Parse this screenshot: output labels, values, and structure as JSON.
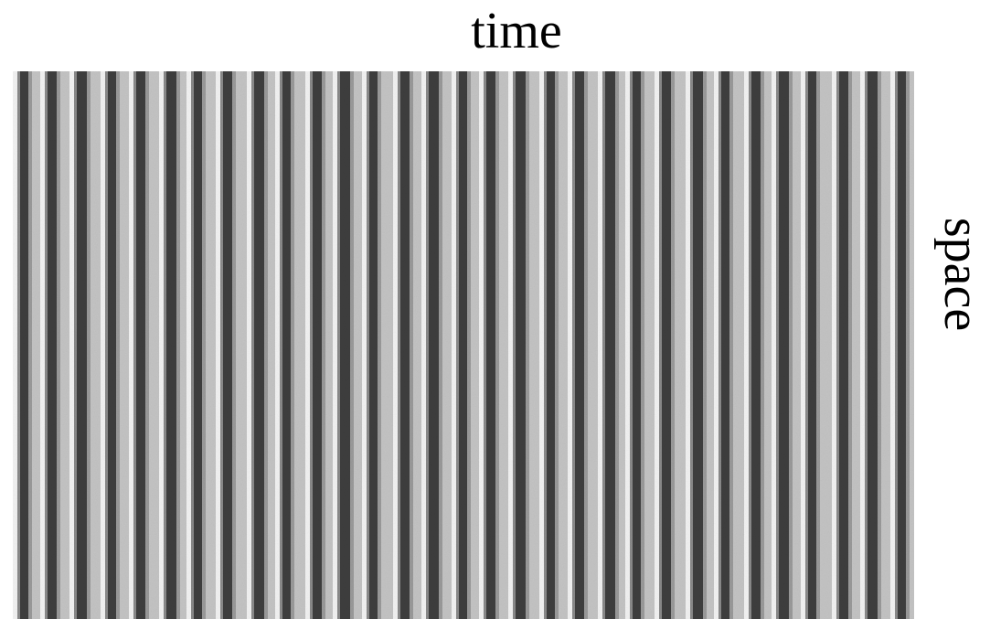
{
  "labels": {
    "top": "time",
    "right": "space"
  }
}
